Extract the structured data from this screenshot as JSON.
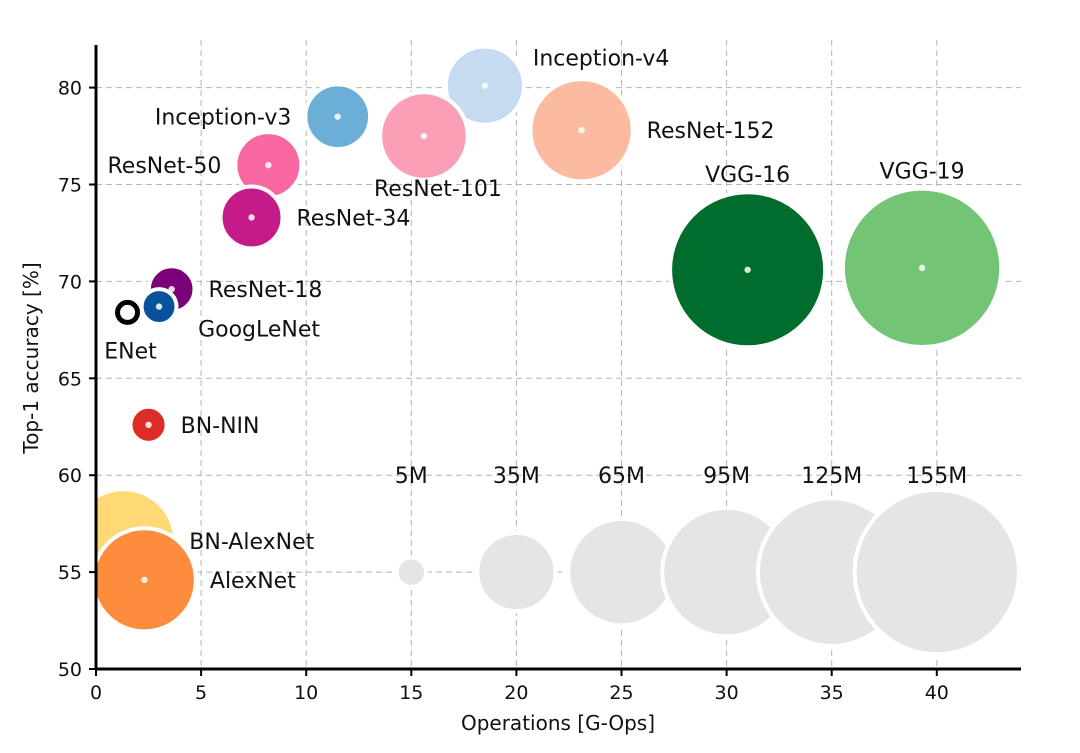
{
  "chart_data": {
    "type": "scatter",
    "subtype": "bubble",
    "xlabel": "Operations [G-Ops]",
    "ylabel": "Top-1 accuracy [%]",
    "xlim": [
      0,
      44
    ],
    "ylim": [
      50,
      82
    ],
    "xticks": [
      0,
      5,
      10,
      15,
      20,
      25,
      30,
      35,
      40
    ],
    "yticks": [
      50,
      55,
      60,
      65,
      70,
      75,
      80
    ],
    "grid": true,
    "bubble_size_meaning": "parameters (millions)",
    "points": [
      {
        "label": "Inception-v4",
        "x": 18.5,
        "y": 80.1,
        "params_m": 35,
        "color": "#c6dbef",
        "label_pos": "upper-right"
      },
      {
        "label": "Inception-v3",
        "x": 11.5,
        "y": 78.5,
        "params_m": 24,
        "color": "#6baed6",
        "label_pos": "left"
      },
      {
        "label": "ResNet-152",
        "x": 23.1,
        "y": 77.8,
        "params_m": 60,
        "color": "#fcbba1",
        "label_pos": "right"
      },
      {
        "label": "ResNet-101",
        "x": 15.6,
        "y": 77.5,
        "params_m": 44,
        "color": "#fa9fb5",
        "label_pos": "below-right"
      },
      {
        "label": "ResNet-50",
        "x": 8.2,
        "y": 76.0,
        "params_m": 25,
        "color": "#f768a1",
        "label_pos": "left"
      },
      {
        "label": "ResNet-34",
        "x": 7.4,
        "y": 73.3,
        "params_m": 22,
        "color": "#c51b8a",
        "label_pos": "right"
      },
      {
        "label": "VGG-16",
        "x": 31.0,
        "y": 70.6,
        "params_m": 138,
        "color": "#006d2c",
        "label_pos": "above"
      },
      {
        "label": "VGG-19",
        "x": 39.3,
        "y": 70.7,
        "params_m": 144,
        "color": "#74c476",
        "label_pos": "above"
      },
      {
        "label": "ResNet-18",
        "x": 3.6,
        "y": 69.6,
        "params_m": 12,
        "color": "#7a0177",
        "label_pos": "right"
      },
      {
        "label": "GoogLeNet",
        "x": 3.0,
        "y": 68.7,
        "params_m": 7,
        "color": "#08519c",
        "label_pos": "below-right"
      },
      {
        "label": "ENet",
        "x": 1.5,
        "y": 68.4,
        "params_m": 0.4,
        "color": "#000000",
        "label_pos": "below"
      },
      {
        "label": "BN-NIN",
        "x": 2.5,
        "y": 62.6,
        "params_m": 7.5,
        "color": "#de2d26",
        "label_pos": "right"
      },
      {
        "label": "BN-AlexNet",
        "x": 1.3,
        "y": 56.6,
        "params_m": 62,
        "color": "#fed976",
        "label_pos": "right"
      },
      {
        "label": "AlexNet",
        "x": 2.3,
        "y": 54.6,
        "params_m": 61,
        "color": "#fd8d3c",
        "label_pos": "right"
      }
    ],
    "size_legend": {
      "y": 55,
      "color": "#e5e5e5",
      "items": [
        {
          "label": "5M",
          "x": 15,
          "params_m": 5
        },
        {
          "label": "35M",
          "x": 20,
          "params_m": 35
        },
        {
          "label": "65M",
          "x": 25,
          "params_m": 65
        },
        {
          "label": "95M",
          "x": 30,
          "params_m": 95
        },
        {
          "label": "125M",
          "x": 35,
          "params_m": 125
        },
        {
          "label": "155M",
          "x": 40,
          "params_m": 155
        }
      ]
    }
  }
}
